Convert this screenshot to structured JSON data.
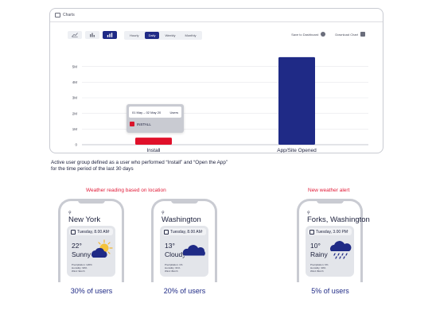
{
  "card": {
    "title": "Charts"
  },
  "toolbar": {
    "periods": [
      "Hourly",
      "Daily",
      "Weekly",
      "Monthly"
    ],
    "active_period": "Daily",
    "save_label": "Save to Dashboard",
    "download_label": "Download Chart"
  },
  "tooltip": {
    "date_range": "01 May – 02 May 20",
    "header": "Users",
    "item": "INSTALL"
  },
  "chart_data": {
    "type": "bar",
    "categories": [
      "Install",
      "App/Site Opened"
    ],
    "values": [
      0.45,
      5.6
    ],
    "tick_labels": [
      "0",
      "1M",
      "2M",
      "3M",
      "4M",
      "5M"
    ],
    "ylim": [
      0,
      6
    ],
    "bar_colors": [
      "#e0102a",
      "#1f2a86"
    ],
    "grid": true
  },
  "caption": {
    "line1": "Active user group defined as a user who performed “Install” and “Open the App”",
    "line2": "for the time period of the last 30 days"
  },
  "sections": {
    "left": "Weather reading based on location",
    "right": "New weather alert"
  },
  "phones": [
    {
      "city": "New York",
      "time": "Tuesday, 8.00 AM",
      "temp": "22°",
      "condition": "Sunny",
      "precipitation": "Precipitation: 120%",
      "humidity": "Humidity: 90%",
      "wind": "Wind: 9km/h",
      "icon": "sun-cloud-icon",
      "pct": "30% of users"
    },
    {
      "city": "Washington",
      "time": "Tuesday, 8.00 AM",
      "temp": "13°",
      "condition": "Cloudy",
      "precipitation": "Precipitation: 1%",
      "humidity": "Humidity: 61%",
      "wind": "Wind: 8km/h",
      "icon": "cloud-icon",
      "pct": "20% of users"
    },
    {
      "city": "Forks, Washington",
      "time": "Tuesday, 3.00 PM",
      "temp": "10°",
      "condition": "Rainy",
      "precipitation": "Precipitation: 6%",
      "humidity": "Humidity: 30%",
      "wind": "Wind: 8km/h",
      "icon": "rain-cloud-icon",
      "pct": "5% of users"
    }
  ],
  "colors": {
    "accent": "#1f2a86",
    "alert": "#e11b38",
    "bar_install": "#e0102a"
  }
}
